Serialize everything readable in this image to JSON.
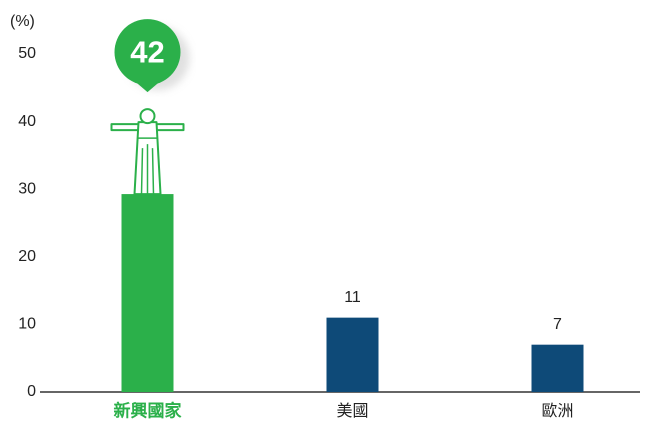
{
  "chart_data": {
    "type": "bar",
    "y_unit": "(%)",
    "categories": [
      "新興國家",
      "美國",
      "歐洲"
    ],
    "values": [
      42,
      11,
      7
    ],
    "colors": [
      "#2bb04a",
      "#0e4a78",
      "#0e4a78"
    ],
    "ylim": [
      0,
      50
    ],
    "yticks": [
      0,
      10,
      20,
      30,
      40,
      50
    ],
    "grid": false
  }
}
